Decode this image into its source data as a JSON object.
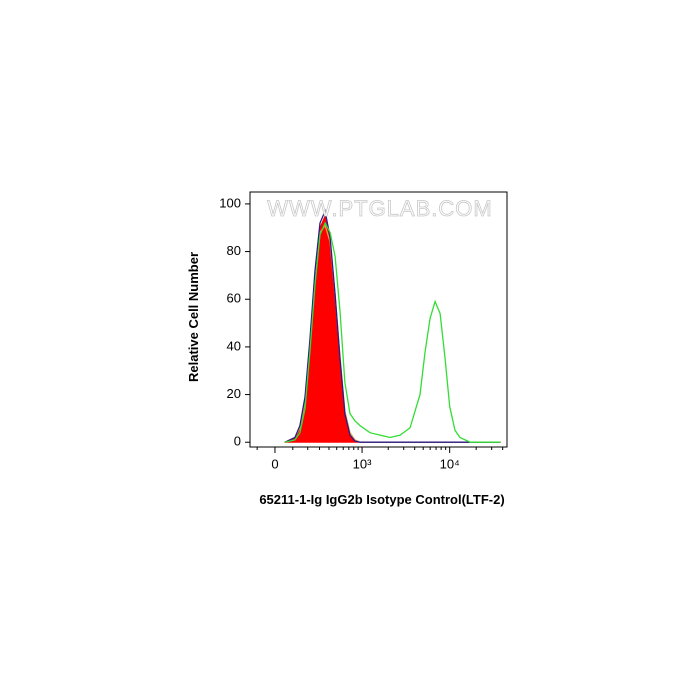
{
  "chart_data": {
    "type": "histogram-overlay",
    "watermark": "WWW.PTGLAB.COM",
    "x_label": "65211-1-Ig IgG2b Isotype Control(LTF-2)",
    "y_label": "Relative Cell Number",
    "xscale": "logicle",
    "xlim": [
      -145,
      44800
    ],
    "ylim": [
      -2,
      105
    ],
    "xticks": [
      {
        "value": 0,
        "label": "0"
      },
      {
        "value": 1000,
        "label": "10³"
      },
      {
        "value": 10000,
        "label": "10⁴"
      }
    ],
    "xminorticks": [
      -100,
      100,
      200,
      300,
      400,
      500,
      600,
      700,
      800,
      900,
      2000,
      3000,
      4000,
      5000,
      6000,
      7000,
      8000,
      9000,
      20000,
      30000,
      40000
    ],
    "yticks": [
      0,
      20,
      40,
      60,
      80,
      100
    ],
    "x": [
      55,
      113,
      145,
      180,
      217,
      259,
      304,
      356,
      414,
      477,
      548,
      629,
      722,
      826,
      946,
      1236,
      1610,
      2095,
      2726,
      3540,
      4600,
      5250,
      5990,
      6830,
      7790,
      8870,
      10000,
      11500,
      13100,
      17100,
      22200,
      37500
    ],
    "series": [
      {
        "color": "#ff0000",
        "fill": true,
        "values": [
          0,
          2,
          6,
          18,
          42,
          70,
          90,
          95,
          84,
          60,
          34,
          12,
          3,
          0.5,
          0,
          0,
          0,
          0,
          0,
          0,
          0,
          0,
          0,
          0,
          0,
          0,
          0,
          0,
          0,
          0,
          0,
          0
        ]
      },
      {
        "color": "#e8a040",
        "fill": false,
        "values": [
          0,
          2,
          6,
          17,
          40,
          68,
          88,
          91,
          84,
          62,
          36,
          13,
          4,
          1,
          0,
          0,
          0,
          0,
          0,
          0,
          0,
          0,
          0,
          0,
          0,
          0,
          0,
          0,
          0,
          0,
          0,
          0
        ]
      },
      {
        "color": "#2a1a8a",
        "fill": false,
        "values": [
          0,
          2,
          7,
          19,
          43,
          72,
          92,
          97,
          86,
          62,
          35,
          12,
          3,
          0.5,
          0,
          0,
          0,
          0,
          0,
          0,
          0,
          0,
          0,
          0,
          0,
          0,
          0,
          0,
          0,
          0,
          0,
          0
        ]
      },
      {
        "color": "#33dd33",
        "fill": false,
        "values": [
          0,
          1,
          4,
          14,
          38,
          66,
          87,
          92,
          88,
          78,
          55,
          25,
          12,
          9,
          7,
          4,
          3,
          2,
          3,
          6,
          20,
          38,
          52,
          59,
          54,
          35,
          15,
          5,
          2,
          0,
          0,
          0
        ]
      }
    ]
  }
}
